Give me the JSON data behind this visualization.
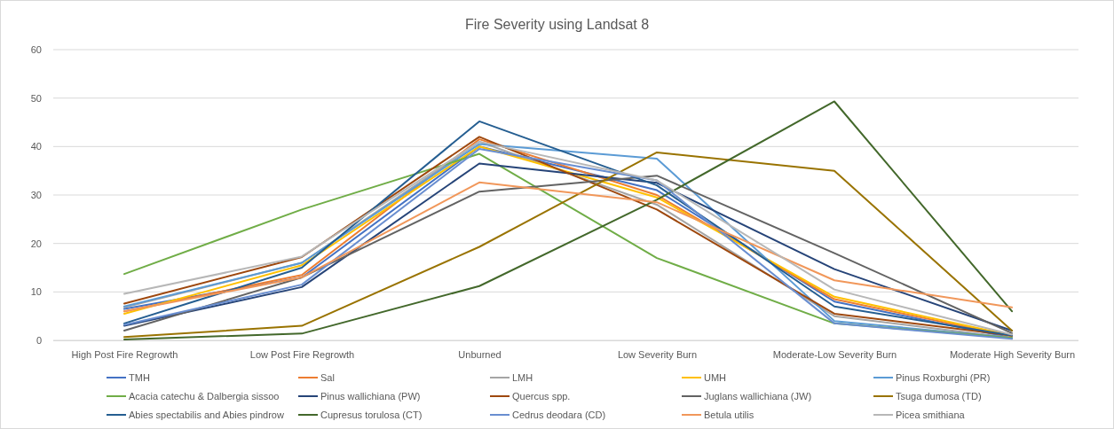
{
  "chart_data": {
    "type": "line",
    "title": "Fire Severity using Landsat 8",
    "categories": [
      "High Post Fire Regrowth",
      "Low Post Fire Regrowth",
      "Unburned",
      "Low Severity Burn",
      "Moderate-Low Severity Burn",
      "Moderate High Severity Burn"
    ],
    "ylim": [
      0,
      60
    ],
    "yticks": [
      0,
      10,
      20,
      30,
      40,
      50,
      60
    ],
    "grid": "y",
    "legend": "bottom",
    "marker": "none",
    "line_style": "solid",
    "series": [
      {
        "name": "TMH",
        "color": "#4472c4",
        "values": [
          6.5,
          13,
          40,
          31,
          8,
          0.5
        ]
      },
      {
        "name": "Sal",
        "color": "#ed7d31",
        "values": [
          6,
          13.5,
          41.5,
          30,
          8.5,
          0.8
        ]
      },
      {
        "name": "LMH",
        "color": "#a5a5a5",
        "values": [
          6.8,
          16,
          41,
          28,
          5,
          0.5
        ]
      },
      {
        "name": "UMH",
        "color": "#ffc000",
        "values": [
          5.5,
          15.5,
          40,
          29.5,
          9,
          1
        ]
      },
      {
        "name": "Pinus Roxburghi (PR)",
        "color": "#5b9bd5",
        "values": [
          7,
          16,
          40.5,
          37.5,
          4,
          0.5
        ]
      },
      {
        "name": "Acacia catechu & Dalbergia sissoo",
        "color": "#70ad47",
        "values": [
          13.7,
          27,
          38.5,
          17,
          3.5,
          0.5
        ]
      },
      {
        "name": "Pinus wallichiana (PW)",
        "color": "#264478",
        "values": [
          3,
          11,
          36.5,
          32.5,
          14.7,
          2
        ]
      },
      {
        "name": "Quercus spp.",
        "color": "#9e480e",
        "values": [
          7.6,
          17.2,
          42,
          27,
          5.5,
          1
        ]
      },
      {
        "name": "Juglans wallichiana (JW)",
        "color": "#636363",
        "values": [
          2,
          13,
          30.7,
          34,
          18,
          1.5
        ]
      },
      {
        "name": "Tsuga dumosa (TD)",
        "color": "#997300",
        "values": [
          0.7,
          3,
          19.3,
          38.8,
          35,
          2
        ]
      },
      {
        "name": "Abies spectabilis and Abies pindrow",
        "color": "#255e91",
        "values": [
          3.5,
          15,
          45.2,
          32,
          7,
          1
        ]
      },
      {
        "name": "Cupresus torulosa (CT)",
        "color": "#43682b",
        "values": [
          0.2,
          1.4,
          11.2,
          29,
          49.3,
          6
        ]
      },
      {
        "name": "Cedrus deodara (CD)",
        "color": "#698ed0",
        "values": [
          3.2,
          11.5,
          39.5,
          33,
          3.5,
          0.3
        ]
      },
      {
        "name": "Betula utilis",
        "color": "#f1975a",
        "values": [
          6,
          13,
          32.6,
          28.5,
          12.4,
          6.8
        ]
      },
      {
        "name": "Picea smithiana",
        "color": "#b7b7b7",
        "values": [
          9.6,
          17.3,
          41,
          33,
          10.5,
          1.2
        ]
      }
    ]
  }
}
